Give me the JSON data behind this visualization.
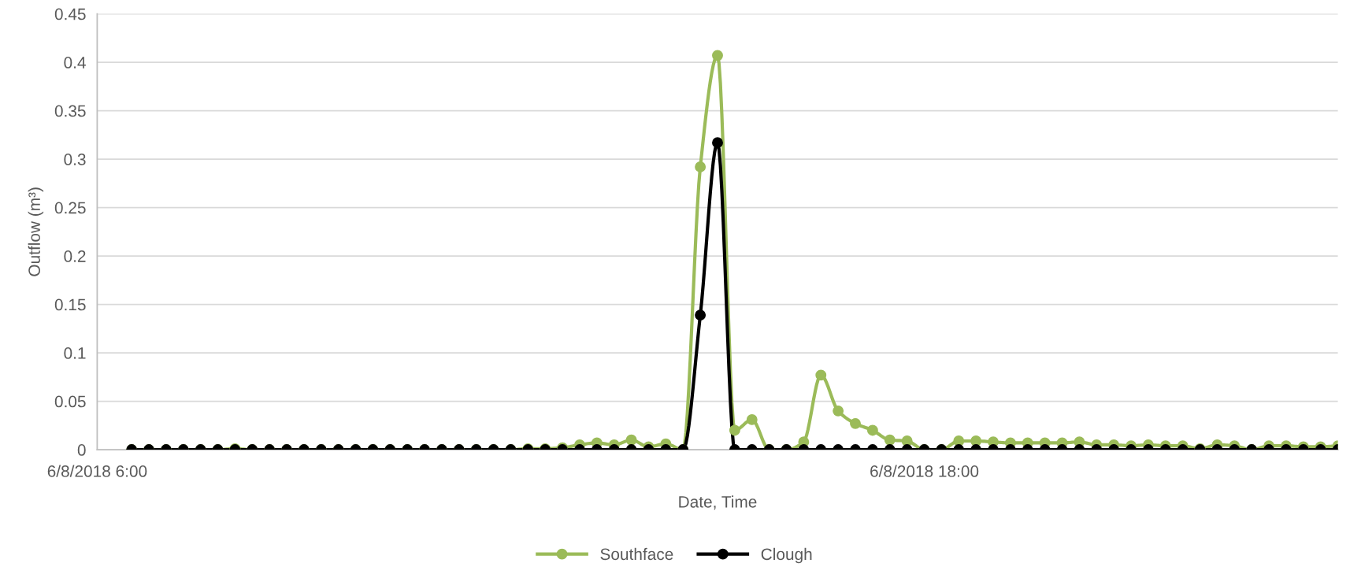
{
  "chart_data": {
    "type": "line",
    "xlabel": "Date, Time",
    "ylabel": "Outflow (m³)",
    "x": [
      "2018-06-08T06:30",
      "2018-06-08T06:45",
      "2018-06-08T07:00",
      "2018-06-08T07:15",
      "2018-06-08T07:30",
      "2018-06-08T07:45",
      "2018-06-08T08:00",
      "2018-06-08T08:15",
      "2018-06-08T08:30",
      "2018-06-08T08:45",
      "2018-06-08T09:00",
      "2018-06-08T09:15",
      "2018-06-08T09:30",
      "2018-06-08T09:45",
      "2018-06-08T10:00",
      "2018-06-08T10:15",
      "2018-06-08T10:30",
      "2018-06-08T10:45",
      "2018-06-08T11:00",
      "2018-06-08T11:15",
      "2018-06-08T11:30",
      "2018-06-08T11:45",
      "2018-06-08T12:00",
      "2018-06-08T12:15",
      "2018-06-08T12:30",
      "2018-06-08T12:45",
      "2018-06-08T13:00",
      "2018-06-08T13:15",
      "2018-06-08T13:30",
      "2018-06-08T13:45",
      "2018-06-08T14:00",
      "2018-06-08T14:15",
      "2018-06-08T14:30",
      "2018-06-08T14:45",
      "2018-06-08T15:00",
      "2018-06-08T15:15",
      "2018-06-08T15:30",
      "2018-06-08T15:45",
      "2018-06-08T16:00",
      "2018-06-08T16:15",
      "2018-06-08T16:30",
      "2018-06-08T16:45",
      "2018-06-08T17:00",
      "2018-06-08T17:15",
      "2018-06-08T17:30",
      "2018-06-08T17:45",
      "2018-06-08T18:00",
      "2018-06-08T18:15",
      "2018-06-08T18:30",
      "2018-06-08T18:45",
      "2018-06-08T19:00",
      "2018-06-08T19:15",
      "2018-06-08T19:30",
      "2018-06-08T19:45",
      "2018-06-08T20:00",
      "2018-06-08T20:15",
      "2018-06-08T20:30",
      "2018-06-08T20:45",
      "2018-06-08T21:00",
      "2018-06-08T21:15",
      "2018-06-08T21:30",
      "2018-06-08T21:45",
      "2018-06-08T22:00",
      "2018-06-08T22:15",
      "2018-06-08T22:30",
      "2018-06-08T22:45",
      "2018-06-08T23:00",
      "2018-06-08T23:15",
      "2018-06-08T23:30",
      "2018-06-08T23:45",
      "2018-06-09T00:00"
    ],
    "series": [
      {
        "name": "Southface",
        "color": "#9bbb59",
        "values": [
          0,
          0,
          0,
          0,
          0,
          0,
          0.001,
          0,
          0,
          0,
          0,
          0,
          0,
          0,
          0,
          0,
          0,
          0,
          0,
          0,
          0,
          0,
          0,
          0.001,
          0.001,
          0.002,
          0.005,
          0.007,
          0.005,
          0.01,
          0.003,
          0.006,
          0,
          0.292,
          0.407,
          0.02,
          0.031,
          0,
          0,
          0.008,
          0.077,
          0.04,
          0.027,
          0.02,
          0.01,
          0.009,
          0,
          0,
          0.009,
          0.009,
          0.008,
          0.007,
          0.007,
          0.007,
          0.007,
          0.008,
          0.005,
          0.005,
          0.004,
          0.005,
          0.004,
          0.004,
          0.001,
          0.005,
          0.004,
          0,
          0.004,
          0.004,
          0.003,
          0.003,
          0.004
        ]
      },
      {
        "name": "Clough",
        "color": "#000000",
        "values": [
          0,
          0,
          0,
          0,
          0,
          0,
          0,
          0,
          0,
          0,
          0,
          0,
          0,
          0,
          0,
          0,
          0,
          0,
          0,
          0,
          0,
          0,
          0,
          0,
          0,
          0,
          0,
          0,
          0,
          0,
          0,
          0,
          0,
          0.139,
          0.317,
          0,
          0,
          0,
          0,
          0,
          0,
          0,
          0,
          0,
          0,
          0,
          0,
          0,
          0,
          0,
          0,
          0,
          0,
          0,
          0,
          0,
          0,
          0,
          0,
          0,
          0,
          0,
          0,
          0,
          0,
          0,
          0,
          0,
          0,
          0,
          0
        ]
      }
    ],
    "xlim": [
      "2018-06-08T06:00",
      "2018-06-09T00:00"
    ],
    "xticks": [
      {
        "value": "2018-06-08T06:00",
        "label": "6/8/2018 6:00"
      },
      {
        "value": "2018-06-08T18:00",
        "label": "6/8/2018 18:00"
      }
    ],
    "ylim": [
      0,
      0.45
    ],
    "yticks": [
      0,
      0.05,
      0.1,
      0.15,
      0.2,
      0.25,
      0.3,
      0.35,
      0.4,
      0.45
    ],
    "grid": "y",
    "legend": "bottom",
    "marker": "circle",
    "line_style": "solid"
  }
}
